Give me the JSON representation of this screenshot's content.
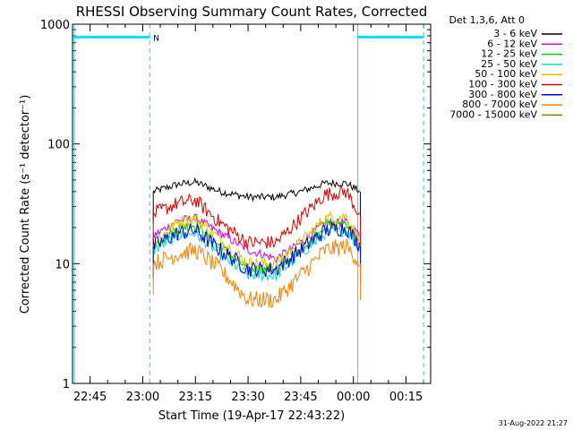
{
  "chart_data": {
    "type": "line",
    "title": "RHESSI Observing Summary Count Rates, Corrected",
    "xlabel": "Start Time (19-Apr-17 22:43:22)",
    "ylabel": "Corrected Count Rate (s⁻¹ detector⁻¹)",
    "y_scale": "log",
    "ylim": [
      1,
      1000
    ],
    "xlim": [
      "22:40",
      "00:22"
    ],
    "x_ticks": [
      "22:45",
      "23:00",
      "23:15",
      "23:30",
      "23:45",
      "00:00",
      "00:15"
    ],
    "y_ticks": [
      "1",
      "10",
      "100",
      "1000"
    ],
    "legend_title": "Det 1,3,6, Att 0",
    "legend_position": "outside-right",
    "series": [
      {
        "name": "3 - 6 keV",
        "color": "#000000",
        "x": [
          "23:03",
          "23:10",
          "23:15",
          "23:22",
          "23:30",
          "23:38",
          "23:45",
          "23:52",
          "23:58",
          "00:02"
        ],
        "values": [
          40,
          46,
          48,
          40,
          36,
          36,
          40,
          47,
          47,
          40
        ]
      },
      {
        "name": "6 - 12 keV",
        "color": "#e000e0",
        "x": [
          "23:03",
          "23:10",
          "23:15",
          "23:22",
          "23:30",
          "23:38",
          "23:45",
          "23:52",
          "23:58",
          "00:02"
        ],
        "values": [
          17,
          23,
          24,
          18,
          13,
          11,
          15,
          22,
          22,
          17
        ]
      },
      {
        "name": "12 - 25 keV",
        "color": "#00c800",
        "x": [
          "23:03",
          "23:10",
          "23:15",
          "23:22",
          "23:30",
          "23:38",
          "23:45",
          "23:52",
          "23:58",
          "00:02"
        ],
        "values": [
          14,
          20,
          21,
          14,
          9,
          9,
          13,
          21,
          22,
          14
        ]
      },
      {
        "name": "25 - 50 keV",
        "color": "#00dcdc",
        "x": [
          "23:03",
          "23:10",
          "23:15",
          "23:22",
          "23:30",
          "23:38",
          "23:45",
          "23:52",
          "23:58",
          "00:02"
        ],
        "values": [
          13,
          17,
          18,
          12,
          8,
          8,
          12,
          18,
          19,
          13
        ]
      },
      {
        "name": "50 - 100 keV",
        "color": "#d4c800",
        "x": [
          "23:03",
          "23:10",
          "23:15",
          "23:22",
          "23:30",
          "23:38",
          "23:45",
          "23:52",
          "23:58",
          "00:02"
        ],
        "values": [
          15,
          22,
          24,
          16,
          10,
          10,
          15,
          24,
          25,
          15
        ]
      },
      {
        "name": "100 - 300 keV",
        "color": "#e00000",
        "x": [
          "23:03",
          "23:10",
          "23:15",
          "23:22",
          "23:30",
          "23:38",
          "23:45",
          "23:52",
          "23:58",
          "00:02"
        ],
        "values": [
          26,
          32,
          34,
          22,
          15,
          15,
          24,
          38,
          40,
          25
        ]
      },
      {
        "name": "300 - 800 keV",
        "color": "#0000e0",
        "x": [
          "23:03",
          "23:10",
          "23:15",
          "23:22",
          "23:30",
          "23:38",
          "23:45",
          "23:52",
          "23:58",
          "00:02"
        ],
        "values": [
          14,
          18,
          19,
          13,
          9,
          9,
          13,
          19,
          20,
          14
        ]
      },
      {
        "name": "800 - 7000 keV",
        "color": "#ff8000",
        "x": [
          "23:03",
          "23:10",
          "23:15",
          "23:22",
          "23:30",
          "23:38",
          "23:45",
          "23:52",
          "23:58",
          "00:02"
        ],
        "values": [
          10,
          12,
          13,
          9,
          5,
          5,
          8,
          13,
          14,
          10
        ]
      },
      {
        "name": "7000 - 15000 keV",
        "color": "#808000",
        "x": [],
        "values": []
      }
    ],
    "markers": {
      "intervals": [
        {
          "label": "N",
          "start": "22:40",
          "end": "23:02"
        },
        {
          "label": "",
          "start": "00:01",
          "end": "00:20"
        }
      ],
      "level": 780
    },
    "footer_date": "31-Aug-2022 21:27"
  }
}
